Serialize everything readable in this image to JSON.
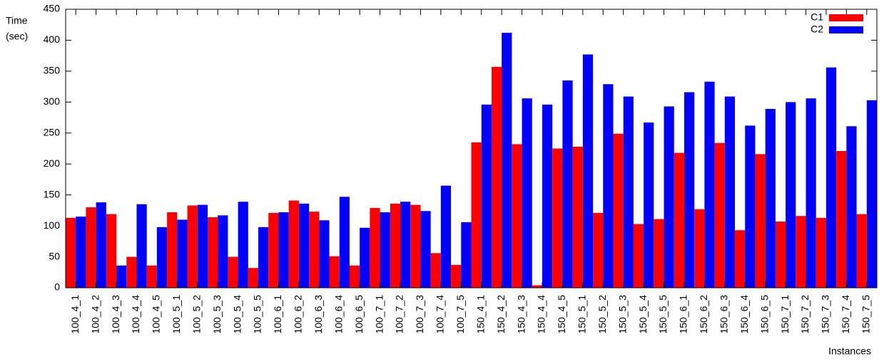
{
  "chart_data": {
    "type": "grouped-bar",
    "y_label": [
      "Time",
      "(sec)"
    ],
    "x_label": "Instances",
    "categories": [
      "100_4_1",
      "100_4_2",
      "100_4_3",
      "100_4_4",
      "100_4_5",
      "100_5_1",
      "100_5_2",
      "100_5_3",
      "100_5_4",
      "100_5_5",
      "100_6_1",
      "100_6_2",
      "100_6_3",
      "100_6_4",
      "100_6_5",
      "100_7_1",
      "100_7_2",
      "100_7_3",
      "100_7_4",
      "100_7_5",
      "150_4_1",
      "150_4_2",
      "150_4_3",
      "150_4_4",
      "150_4_5",
      "150_5_1",
      "150_5_2",
      "150_5_3",
      "150_5_4",
      "150_5_5",
      "150_6_1",
      "150_6_2",
      "150_6_3",
      "150_6_4",
      "150_6_5",
      "150_7_1",
      "150_7_2",
      "150_7_3",
      "150_7_4",
      "150_7_5"
    ],
    "series": [
      {
        "name": "C1",
        "color": "#ff0000",
        "values": [
          113,
          130,
          119,
          50,
          36,
          122,
          133,
          114,
          50,
          32,
          121,
          141,
          123,
          51,
          36,
          129,
          136,
          134,
          56,
          37,
          235,
          357,
          232,
          4,
          225,
          228,
          121,
          249,
          103,
          111,
          218,
          127,
          234,
          93,
          216,
          107,
          116,
          113,
          221,
          119
        ]
      },
      {
        "name": "C2",
        "color": "#0000ff",
        "values": [
          115,
          138,
          36,
          135,
          98,
          110,
          134,
          117,
          139,
          98,
          122,
          136,
          109,
          147,
          97,
          122,
          139,
          124,
          165,
          106,
          296,
          412,
          306,
          296,
          335,
          377,
          329,
          309,
          267,
          293,
          316,
          333,
          309,
          262,
          289,
          300,
          306,
          356,
          261,
          303
        ]
      }
    ],
    "ylim": [
      0,
      450
    ],
    "yticks": [
      0,
      50,
      100,
      150,
      200,
      250,
      300,
      350,
      400,
      450
    ],
    "legend": "top-right",
    "grid": false
  }
}
